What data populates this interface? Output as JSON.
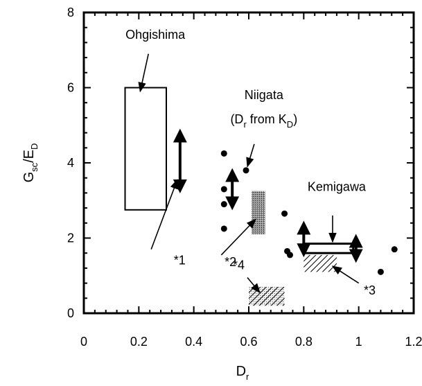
{
  "chart_data": {
    "type": "scatter",
    "title": "",
    "xlabel": {
      "main": "D",
      "sub": "r"
    },
    "ylabel": {
      "main": "G",
      "sub": "sc",
      "tail": "/E",
      "tail_sub": "D"
    },
    "xlim": [
      0,
      1.2
    ],
    "ylim": [
      0,
      8
    ],
    "xticks": [
      0,
      0.2,
      0.4,
      0.6,
      0.8,
      1,
      1.2
    ],
    "xtick_labels": [
      "0",
      "0.2",
      "0.4",
      "0.6",
      "0.8",
      "1",
      "1.2"
    ],
    "yticks": [
      0,
      2,
      4,
      6,
      8
    ],
    "ytick_labels": [
      "0",
      "2",
      "4",
      "6",
      "8"
    ],
    "grid": false,
    "points": [
      {
        "x": 0.51,
        "y": 4.25
      },
      {
        "x": 0.51,
        "y": 3.3
      },
      {
        "x": 0.51,
        "y": 2.9
      },
      {
        "x": 0.51,
        "y": 2.25
      },
      {
        "x": 0.59,
        "y": 3.8
      },
      {
        "x": 0.73,
        "y": 2.65
      },
      {
        "x": 0.74,
        "y": 1.65
      },
      {
        "x": 0.75,
        "y": 1.55
      },
      {
        "x": 1.08,
        "y": 1.1
      },
      {
        "x": 1.13,
        "y": 1.7
      }
    ],
    "boxes": [
      {
        "x0": 0.15,
        "x1": 0.3,
        "y0": 2.75,
        "y1": 6.0,
        "style": "open"
      },
      {
        "x0": 0.61,
        "x1": 0.66,
        "y0": 2.1,
        "y1": 3.25,
        "style": "dark-stipple"
      },
      {
        "x0": 0.8,
        "x1": 0.98,
        "y0": 1.6,
        "y1": 1.85,
        "style": "open"
      },
      {
        "x0": 0.8,
        "x1": 0.92,
        "y0": 1.1,
        "y1": 1.55,
        "style": "hatched"
      },
      {
        "x0": 0.6,
        "x1": 0.73,
        "y0": 0.2,
        "y1": 0.7,
        "style": "hatched-stipple"
      }
    ],
    "ranges": [
      {
        "x": 0.35,
        "y0": 3.3,
        "y1": 4.8,
        "style": "double-arrow"
      },
      {
        "x": 0.54,
        "y0": 2.85,
        "y1": 3.75,
        "style": "double-arrow"
      },
      {
        "x": 0.8,
        "y0": 1.6,
        "y1": 2.35,
        "style": "double-arrow"
      },
      {
        "x": 0.99,
        "y0": 1.45,
        "y1": 2.0,
        "style": "double-arrow"
      }
    ],
    "annotations": [
      {
        "text": "Ohgishima",
        "x": 0.26,
        "y": 7.3,
        "align": "middle",
        "arrow_from": [
          0.235,
          6.9
        ],
        "arrow_to": [
          0.205,
          5.9
        ]
      },
      {
        "text": "Niigata",
        "x": 0.655,
        "y": 5.7,
        "align": "middle",
        "arrow_from": [
          0.62,
          4.5
        ],
        "arrow_to": [
          0.595,
          3.9
        ]
      },
      {
        "text": "Kemigawa",
        "x": 0.92,
        "y": 3.25,
        "align": "middle",
        "arrow_from": [
          0.905,
          2.6
        ],
        "arrow_to": [
          0.905,
          1.9
        ]
      },
      {
        "text": "*1",
        "x": 0.37,
        "y": 1.3,
        "align": "end",
        "arrow_from": [
          0.245,
          1.7
        ],
        "arrow_to": [
          0.34,
          3.55
        ]
      },
      {
        "text": "*2",
        "x": 0.555,
        "y": 1.25,
        "align": "end",
        "arrow_from": [
          0.5,
          1.55
        ],
        "arrow_to": [
          0.625,
          2.5
        ]
      },
      {
        "text": "*3",
        "x": 1.04,
        "y": 0.5,
        "align": "middle",
        "arrow_from": [
          1.0,
          0.8
        ],
        "arrow_to": [
          0.905,
          1.25
        ]
      },
      {
        "text": "*4",
        "x": 0.585,
        "y": 1.17,
        "align": "end",
        "arrow_from": [
          0.595,
          0.95
        ],
        "arrow_to": [
          0.64,
          0.55
        ]
      }
    ],
    "niigata_sub": {
      "open": "(D",
      "sub": "r",
      "mid": " from  K",
      "sub2": "D",
      "close": ")",
      "x": 0.655,
      "y": 5.05
    }
  }
}
